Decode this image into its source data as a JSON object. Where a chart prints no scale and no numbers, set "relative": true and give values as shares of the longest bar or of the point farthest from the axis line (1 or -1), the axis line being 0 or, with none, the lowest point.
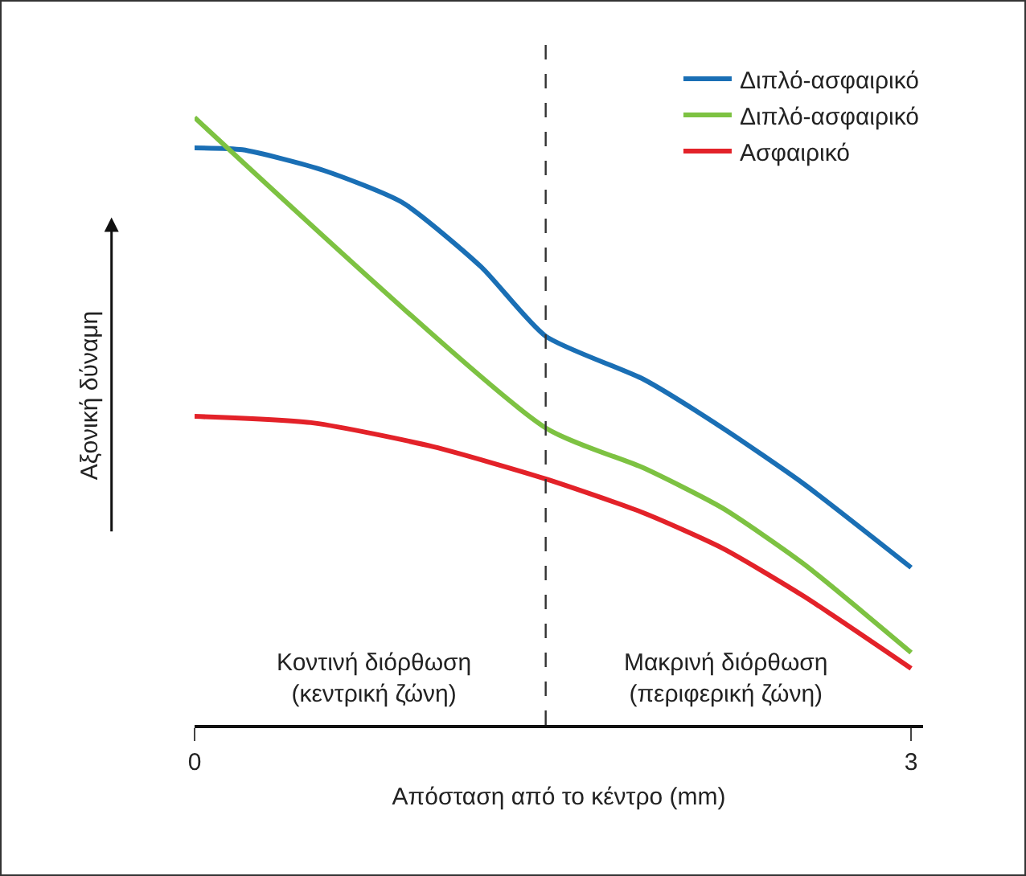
{
  "chart_data": {
    "type": "line",
    "relative": true,
    "xlabel": "Απόσταση από το κέντρο (mm)",
    "ylabel": "Αξονική δύναμη",
    "xlim": [
      0,
      3.05
    ],
    "xticks": [
      0,
      3
    ],
    "legend": "top right",
    "grid": false,
    "marker": "none",
    "line_style": "solid",
    "series": [
      {
        "name": "Διπλό-ασφαιρικό",
        "color": "#1a6fb5",
        "x": [
          0,
          0.2,
          0.54,
          0.87,
          1.2,
          1.47,
          1.88,
          2.21,
          2.55,
          3
        ],
        "values": [
          0.95,
          0.947,
          0.913,
          0.86,
          0.754,
          0.64,
          0.569,
          0.489,
          0.397,
          0.259
        ]
      },
      {
        "name": "Διπλό-ασφαιρικό",
        "color": "#7dc242",
        "x": [
          0,
          1.47,
          1.88,
          2.21,
          2.55,
          3
        ],
        "values": [
          1,
          0.489,
          0.423,
          0.357,
          0.265,
          0.119
        ]
      },
      {
        "name": "Ασφαιρικό",
        "color": "#e32229",
        "x": [
          0,
          0.5,
          1.0,
          1.47,
          1.88,
          2.21,
          2.55,
          3
        ],
        "values": [
          0.508,
          0.497,
          0.458,
          0.405,
          0.349,
          0.291,
          0.212,
          0.093
        ]
      }
    ],
    "ref_lines": [
      {
        "axis": "x",
        "value": 1.47,
        "color": "#333333",
        "line_style": "dashed"
      }
    ],
    "annotations": [
      "Κοντινή διόρθωση\n(κεντρική ζώνη)",
      "Μακρινή διόρθωση\n(περιφερική ζώνη)"
    ]
  }
}
